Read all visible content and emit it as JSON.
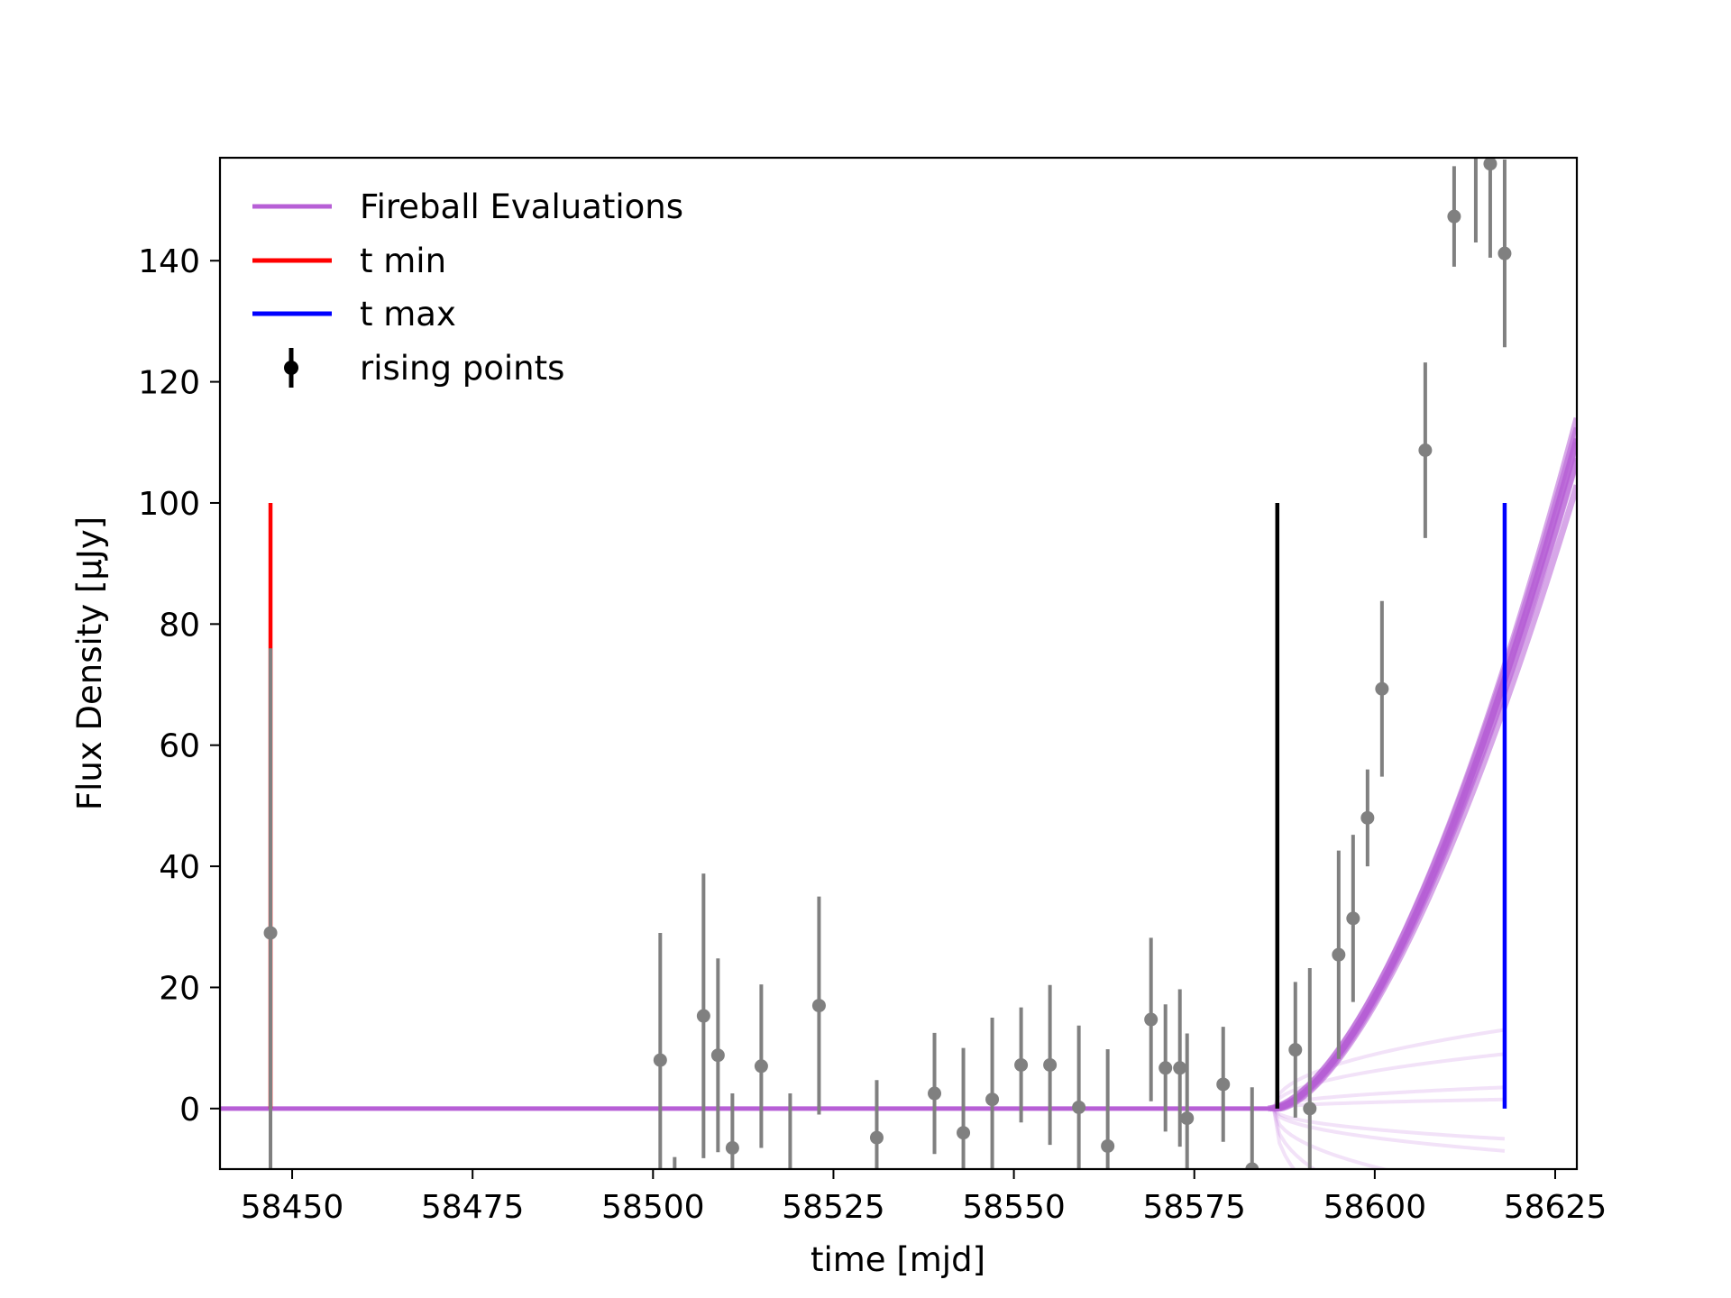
{
  "chart_data": {
    "type": "scatter",
    "xlabel": "time [mjd]",
    "ylabel": "Flux Density [μJy]",
    "xlim": [
      58440,
      58628
    ],
    "ylim": [
      -10,
      157
    ],
    "xticks": [
      58450,
      58475,
      58500,
      58525,
      58550,
      58575,
      58600,
      58625
    ],
    "yticks": [
      0,
      20,
      40,
      60,
      80,
      100,
      120,
      140
    ],
    "grid": false,
    "legend": {
      "position": "top-left",
      "entries": [
        {
          "label": "Fireball Evaluations",
          "kind": "line",
          "color": "#b75fd6"
        },
        {
          "label": "t min",
          "kind": "line",
          "color": "#ff0000"
        },
        {
          "label": "t max",
          "kind": "line",
          "color": "#0000ff"
        },
        {
          "label": "rising points",
          "kind": "errorbar",
          "color": "#000000"
        }
      ]
    },
    "vertical_lines": [
      {
        "name": "t min",
        "x": 58447,
        "y0": 0,
        "y1": 100,
        "color": "#ff0000"
      },
      {
        "name": "t max",
        "x": 58618,
        "y0": 0,
        "y1": 100,
        "color": "#0000ff"
      },
      {
        "name": "marker",
        "x": 58586.5,
        "y0": 0,
        "y1": 100,
        "color": "#000000"
      }
    ],
    "fireball": {
      "color": "#b75fd6",
      "t0": 58586,
      "baseline": 0,
      "curves": [
        {
          "t0": 58586.0,
          "a": 0.258,
          "n": 1.62
        },
        {
          "t0": 58585.5,
          "a": 0.24,
          "n": 1.64
        },
        {
          "t0": 58586.5,
          "a": 0.276,
          "n": 1.6
        },
        {
          "t0": 58585.8,
          "a": 0.23,
          "n": 1.65
        },
        {
          "t0": 58586.3,
          "a": 0.285,
          "n": 1.59
        },
        {
          "t0": 58586.0,
          "a": 0.25,
          "n": 1.63
        },
        {
          "t0": 58585.2,
          "a": 0.215,
          "n": 1.67
        },
        {
          "t0": 58586.8,
          "a": 0.3,
          "n": 1.57
        }
      ],
      "faint_curves": [
        {
          "t0": 58586,
          "end_y": 13
        },
        {
          "t0": 58586,
          "end_y": 9
        },
        {
          "t0": 58586,
          "end_y": 3.5
        },
        {
          "t0": 58586,
          "end_y": 1.5
        },
        {
          "t0": 58586,
          "end_y": -5
        },
        {
          "t0": 58586,
          "end_y": -7
        },
        {
          "t0": 58586,
          "end_y": -14
        },
        {
          "t0": 58586,
          "end_y": -22
        },
        {
          "t0": 58586,
          "end_y": -30
        }
      ]
    },
    "points": [
      {
        "x": 58447,
        "y": 29,
        "err": 47
      },
      {
        "x": 58501,
        "y": 8,
        "err": 21
      },
      {
        "x": 58503,
        "y": -13,
        "err": 5
      },
      {
        "x": 58507,
        "y": 15.3,
        "err": 23.5
      },
      {
        "x": 58509,
        "y": 8.8,
        "err": 16
      },
      {
        "x": 58511,
        "y": -6.5,
        "err": 9
      },
      {
        "x": 58515,
        "y": 7,
        "err": 13.5
      },
      {
        "x": 58519,
        "y": -12,
        "err": 14.5
      },
      {
        "x": 58523,
        "y": 17,
        "err": 18
      },
      {
        "x": 58531,
        "y": -4.8,
        "err": 9.5
      },
      {
        "x": 58539,
        "y": 2.5,
        "err": 10
      },
      {
        "x": 58543,
        "y": -4,
        "err": 14
      },
      {
        "x": 58547,
        "y": 1.5,
        "err": 13.5
      },
      {
        "x": 58551,
        "y": 7.2,
        "err": 9.5
      },
      {
        "x": 58555,
        "y": 7.2,
        "err": 13.2
      },
      {
        "x": 58559,
        "y": 0.2,
        "err": 13.5
      },
      {
        "x": 58563,
        "y": -6.2,
        "err": 16
      },
      {
        "x": 58569,
        "y": 14.7,
        "err": 13.5
      },
      {
        "x": 58571,
        "y": 6.7,
        "err": 10.5
      },
      {
        "x": 58573,
        "y": 6.7,
        "err": 13
      },
      {
        "x": 58574,
        "y": -1.6,
        "err": 14
      },
      {
        "x": 58579,
        "y": 4,
        "err": 9.5
      },
      {
        "x": 58583,
        "y": -10,
        "err": 13.5
      },
      {
        "x": 58589,
        "y": 9.7,
        "err": 11.2
      },
      {
        "x": 58591,
        "y": 0,
        "err": 23.2
      },
      {
        "x": 58595,
        "y": 25.4,
        "err": 17.2
      },
      {
        "x": 58597,
        "y": 31.4,
        "err": 13.8
      },
      {
        "x": 58599,
        "y": 48,
        "err": 8
      },
      {
        "x": 58601,
        "y": 69.3,
        "err": 14.5
      },
      {
        "x": 58607,
        "y": 108.7,
        "err": 14.5
      },
      {
        "x": 58611,
        "y": 147.3,
        "err": 8.3
      },
      {
        "x": 58614,
        "y": 160,
        "err": 17
      },
      {
        "x": 58616,
        "y": 156,
        "err": 15.5
      },
      {
        "x": 58618,
        "y": 141.2,
        "err": 15.5
      }
    ],
    "point_color": "#808080"
  }
}
